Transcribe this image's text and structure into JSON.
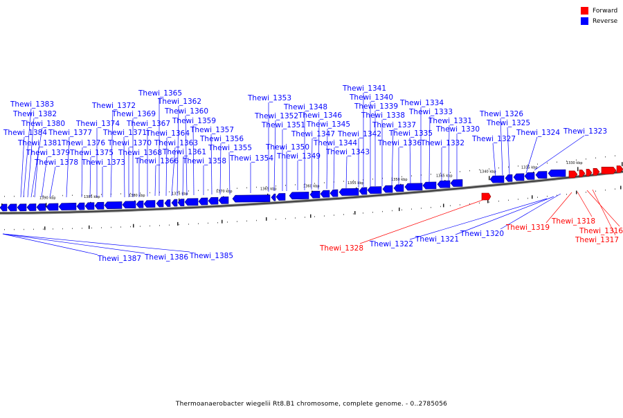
{
  "legend": {
    "forward": {
      "label": "Forward",
      "color": "#ff0000"
    },
    "reverse": {
      "label": "Reverse",
      "color": "#0000ff"
    }
  },
  "caption": "Thermoanaerobacter wiegelii Rt8.B1 chromosome, complete genome. - 0..2785056",
  "scale_labels": [
    "1390 kbp",
    "1385 kbp",
    "1380 kbp",
    "1375 kbp",
    "1370 kbp",
    "1365 kbp",
    "1360 kbp",
    "1355 kbp",
    "1350 kbp",
    "1345 kbp",
    "1340 kbp",
    "1335 kbp",
    "1330 kbp"
  ],
  "genes": [
    {
      "name": "Thewi_1383",
      "strand": "reverse"
    },
    {
      "name": "Thewi_1382",
      "strand": "reverse"
    },
    {
      "name": "Thewi_1380",
      "strand": "reverse"
    },
    {
      "name": "Thewi_1384",
      "strand": "reverse"
    },
    {
      "name": "Thewi_1381",
      "strand": "reverse"
    },
    {
      "name": "Thewi_1379",
      "strand": "reverse"
    },
    {
      "name": "Thewi_1378",
      "strand": "reverse"
    },
    {
      "name": "Thewi_1377",
      "strand": "reverse"
    },
    {
      "name": "Thewi_1376",
      "strand": "reverse"
    },
    {
      "name": "Thewi_1375",
      "strand": "reverse"
    },
    {
      "name": "Thewi_1374",
      "strand": "reverse"
    },
    {
      "name": "Thewi_1373",
      "strand": "reverse"
    },
    {
      "name": "Thewi_1372",
      "strand": "reverse"
    },
    {
      "name": "Thewi_1371",
      "strand": "reverse"
    },
    {
      "name": "Thewi_1370",
      "strand": "reverse"
    },
    {
      "name": "Thewi_1369",
      "strand": "reverse"
    },
    {
      "name": "Thewi_1368",
      "strand": "reverse"
    },
    {
      "name": "Thewi_1367",
      "strand": "reverse"
    },
    {
      "name": "Thewi_1366",
      "strand": "reverse"
    },
    {
      "name": "Thewi_1365",
      "strand": "reverse"
    },
    {
      "name": "Thewi_1364",
      "strand": "reverse"
    },
    {
      "name": "Thewi_1363",
      "strand": "reverse"
    },
    {
      "name": "Thewi_1362",
      "strand": "reverse"
    },
    {
      "name": "Thewi_1361",
      "strand": "reverse"
    },
    {
      "name": "Thewi_1360",
      "strand": "reverse"
    },
    {
      "name": "Thewi_1359",
      "strand": "reverse"
    },
    {
      "name": "Thewi_1358",
      "strand": "reverse"
    },
    {
      "name": "Thewi_1357",
      "strand": "reverse"
    },
    {
      "name": "Thewi_1356",
      "strand": "reverse"
    },
    {
      "name": "Thewi_1355",
      "strand": "reverse"
    },
    {
      "name": "Thewi_1354",
      "strand": "reverse"
    },
    {
      "name": "Thewi_1353",
      "strand": "reverse"
    },
    {
      "name": "Thewi_1352",
      "strand": "reverse"
    },
    {
      "name": "Thewi_1351",
      "strand": "reverse"
    },
    {
      "name": "Thewi_1350",
      "strand": "reverse"
    },
    {
      "name": "Thewi_1349",
      "strand": "reverse"
    },
    {
      "name": "Thewi_1348",
      "strand": "reverse"
    },
    {
      "name": "Thewi_1347",
      "strand": "reverse"
    },
    {
      "name": "Thewi_1346",
      "strand": "reverse"
    },
    {
      "name": "Thewi_1345",
      "strand": "reverse"
    },
    {
      "name": "Thewi_1344",
      "strand": "reverse"
    },
    {
      "name": "Thewi_1343",
      "strand": "reverse"
    },
    {
      "name": "Thewi_1342",
      "strand": "reverse"
    },
    {
      "name": "Thewi_1341",
      "strand": "reverse"
    },
    {
      "name": "Thewi_1340",
      "strand": "reverse"
    },
    {
      "name": "Thewi_1339",
      "strand": "reverse"
    },
    {
      "name": "Thewi_1338",
      "strand": "reverse"
    },
    {
      "name": "Thewi_1337",
      "strand": "reverse"
    },
    {
      "name": "Thewi_1336",
      "strand": "reverse"
    },
    {
      "name": "Thewi_1335",
      "strand": "reverse"
    },
    {
      "name": "Thewi_1334",
      "strand": "reverse"
    },
    {
      "name": "Thewi_1333",
      "strand": "reverse"
    },
    {
      "name": "Thewi_1332",
      "strand": "reverse"
    },
    {
      "name": "Thewi_1331",
      "strand": "reverse"
    },
    {
      "name": "Thewi_1330",
      "strand": "reverse"
    },
    {
      "name": "Thewi_1327",
      "strand": "reverse"
    },
    {
      "name": "Thewi_1326",
      "strand": "reverse"
    },
    {
      "name": "Thewi_1325",
      "strand": "reverse"
    },
    {
      "name": "Thewi_1324",
      "strand": "reverse"
    },
    {
      "name": "Thewi_1323",
      "strand": "reverse"
    },
    {
      "name": "Thewi_1387",
      "strand": "reverse"
    },
    {
      "name": "Thewi_1386",
      "strand": "reverse"
    },
    {
      "name": "Thewi_1385",
      "strand": "reverse"
    },
    {
      "name": "Thewi_1328",
      "strand": "forward"
    },
    {
      "name": "Thewi_1322",
      "strand": "reverse"
    },
    {
      "name": "Thewi_1321",
      "strand": "reverse"
    },
    {
      "name": "Thewi_1320",
      "strand": "reverse"
    },
    {
      "name": "Thewi_1319",
      "strand": "forward"
    },
    {
      "name": "Thewi_1318",
      "strand": "forward"
    },
    {
      "name": "Thewi_1316",
      "strand": "forward"
    },
    {
      "name": "Thewi_1317",
      "strand": "forward"
    }
  ]
}
